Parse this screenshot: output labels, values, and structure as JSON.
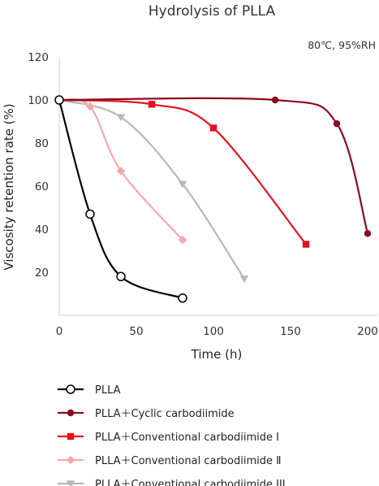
{
  "chart_data": {
    "type": "line",
    "title": "Hydrolysis of PLLA",
    "subtitle": "80℃, 95%RH",
    "xlabel": "Time (h)",
    "ylabel": "Viscosity retention rate (%)",
    "xlim": [
      0,
      200
    ],
    "ylim": [
      0,
      120
    ],
    "xticks": [
      "0",
      "50",
      "100",
      "150",
      "200"
    ],
    "yticks": [
      "20",
      "40",
      "60",
      "80",
      "100",
      "120"
    ],
    "grid": false,
    "legend_position": "bottom",
    "series": [
      {
        "name": "PLLA",
        "marker": "circle-open",
        "color": "#000000",
        "x": [
          0,
          20,
          40,
          80
        ],
        "y": [
          100,
          47,
          18,
          8
        ]
      },
      {
        "name": "PLLA＋Cyclic carbodiimide",
        "marker": "circle",
        "color": "#8b0a1e",
        "x": [
          0,
          140,
          180,
          200
        ],
        "y": [
          100,
          100,
          89,
          38
        ]
      },
      {
        "name": "PLLA＋Conventional carbodiimide Ⅰ",
        "marker": "square",
        "color": "#e8101f",
        "x": [
          0,
          60,
          100,
          160
        ],
        "y": [
          100,
          98,
          87,
          33
        ]
      },
      {
        "name": "PLLA＋Conventional carbodiimide Ⅱ",
        "marker": "diamond",
        "color": "#f9a7ad",
        "x": [
          0,
          20,
          40,
          80
        ],
        "y": [
          100,
          97,
          67,
          35
        ]
      },
      {
        "name": "PLLA＋Conventional carbodiimide III",
        "marker": "triangle-down",
        "color": "#b8b8b8",
        "x": [
          0,
          40,
          80,
          120
        ],
        "y": [
          100,
          92,
          61,
          17
        ]
      }
    ]
  }
}
